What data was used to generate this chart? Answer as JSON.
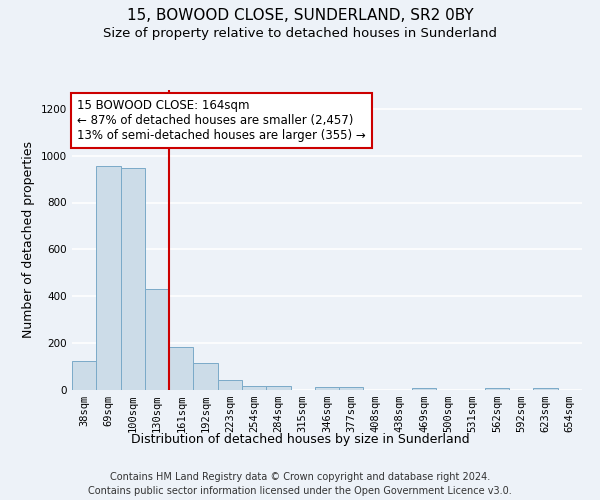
{
  "title": "15, BOWOOD CLOSE, SUNDERLAND, SR2 0BY",
  "subtitle": "Size of property relative to detached houses in Sunderland",
  "xlabel": "Distribution of detached houses by size in Sunderland",
  "ylabel": "Number of detached properties",
  "categories": [
    "38sqm",
    "69sqm",
    "100sqm",
    "130sqm",
    "161sqm",
    "192sqm",
    "223sqm",
    "254sqm",
    "284sqm",
    "315sqm",
    "346sqm",
    "377sqm",
    "408sqm",
    "438sqm",
    "469sqm",
    "500sqm",
    "531sqm",
    "562sqm",
    "592sqm",
    "623sqm",
    "654sqm"
  ],
  "values": [
    122,
    955,
    947,
    430,
    185,
    115,
    42,
    18,
    15,
    0,
    14,
    14,
    0,
    0,
    9,
    0,
    0,
    9,
    0,
    9,
    0
  ],
  "bar_color": "#ccdce8",
  "bar_edge_color": "#7aaac8",
  "vline_color": "#cc0000",
  "annotation_text": "15 BOWOOD CLOSE: 164sqm\n← 87% of detached houses are smaller (2,457)\n13% of semi-detached houses are larger (355) →",
  "annotation_box_color": "white",
  "annotation_box_edge_color": "#cc0000",
  "ylim": [
    0,
    1280
  ],
  "yticks": [
    0,
    200,
    400,
    600,
    800,
    1000,
    1200
  ],
  "footer_text": "Contains HM Land Registry data © Crown copyright and database right 2024.\nContains public sector information licensed under the Open Government Licence v3.0.",
  "bg_color": "#edf2f8",
  "grid_color": "white",
  "title_fontsize": 11,
  "subtitle_fontsize": 9.5,
  "axis_label_fontsize": 9,
  "tick_fontsize": 7.5,
  "annotation_fontsize": 8.5,
  "footer_fontsize": 7
}
